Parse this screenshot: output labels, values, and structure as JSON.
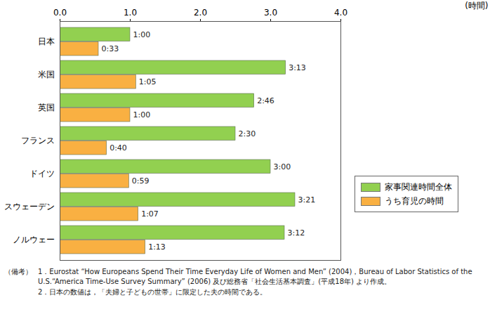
{
  "chart_data": {
    "type": "bar",
    "orientation": "horizontal",
    "categories": [
      "日本",
      "米国",
      "英国",
      "フランス",
      "ドイツ",
      "スウェーデン",
      "ノルウェー"
    ],
    "series": [
      {
        "name": "家事関連時間全体",
        "color": "#92d050",
        "values": [
          1.0,
          3.2167,
          2.7667,
          2.5,
          3.0,
          3.35,
          3.2
        ],
        "value_labels": [
          "1:00",
          "3:13",
          "2:46",
          "2:30",
          "3:00",
          "3:21",
          "3:12"
        ]
      },
      {
        "name": "うち育児の時間",
        "color": "#f9b042",
        "values": [
          0.55,
          1.0833,
          1.0,
          0.6667,
          0.9833,
          1.1167,
          1.2167
        ],
        "value_labels": [
          "0:33",
          "1:05",
          "1:00",
          "0:40",
          "0:59",
          "1:07",
          "1:13"
        ]
      }
    ],
    "xlim": [
      0,
      4
    ],
    "xticks": [
      0,
      1,
      2,
      3,
      4
    ],
    "xlabel": "(時間)",
    "data_labels": true,
    "legend": "right",
    "grid": false,
    "annotations": [
      "（備考）",
      "1．Eurostat “How Europeans Spend Their Time Everyday Life of Women and Men” (2004)，Bureau of Labor Statistics of the U.S.“America Time-Use Survey Summary” (2006) 及び総務省「社会生活基本調査」(平成18年) より作成。",
      "2．日本の数値は，「夫婦と子どもの世帯」に限定した夫の時間である。"
    ]
  }
}
